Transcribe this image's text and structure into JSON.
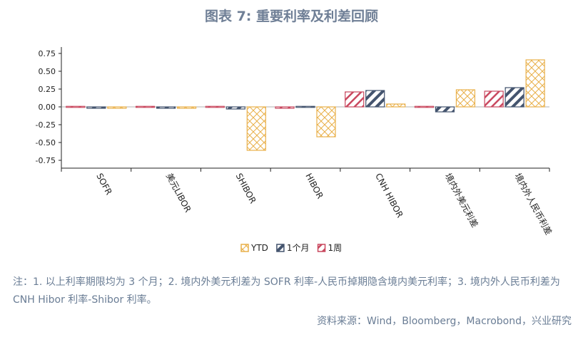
{
  "title": "图表 7: 重要利率及利差回顾",
  "note": "注：1. 以上利率期限均为 3 个月；2. 境内外美元利差为 SOFR 利率-人民币掉期隐含境内美元利率；3. 境内外人民币利差为 CNH Hibor 利率-Shibor 利率。",
  "source": "资料来源：Wind，Bloomberg，Macrobond，兴业研究",
  "chart_data": {
    "type": "bar",
    "title": "图表 7: 重要利率及利差回顾",
    "categories": [
      "SOFR",
      "美元LIBOR",
      "SHIBOR",
      "HIBOR",
      "CNH HIBOR",
      "境内外美元利差",
      "境内外人民币利差"
    ],
    "series": [
      {
        "name": "1周",
        "color": "#c9485f",
        "pattern": "diag-right",
        "values": [
          -0.01,
          -0.01,
          0.0,
          -0.02,
          0.21,
          0.01,
          0.22
        ]
      },
      {
        "name": "1个月",
        "color": "#44546e",
        "pattern": "diag-right-thick",
        "values": [
          -0.02,
          -0.02,
          -0.03,
          0.0,
          0.23,
          -0.07,
          0.27
        ]
      },
      {
        "name": "YTD",
        "color": "#e9b04a",
        "pattern": "cross",
        "values": [
          -0.02,
          -0.02,
          -0.61,
          -0.42,
          0.04,
          0.24,
          0.66
        ]
      }
    ],
    "legend_order": [
      "YTD",
      "1个月",
      "1周"
    ],
    "yticks": [
      "0.75",
      "0.50",
      "0.25",
      "0.00",
      "-0.25",
      "-0.50",
      "-0.75"
    ],
    "ylim": [
      -0.85,
      0.85
    ],
    "legend": "bottom",
    "grid": false
  }
}
